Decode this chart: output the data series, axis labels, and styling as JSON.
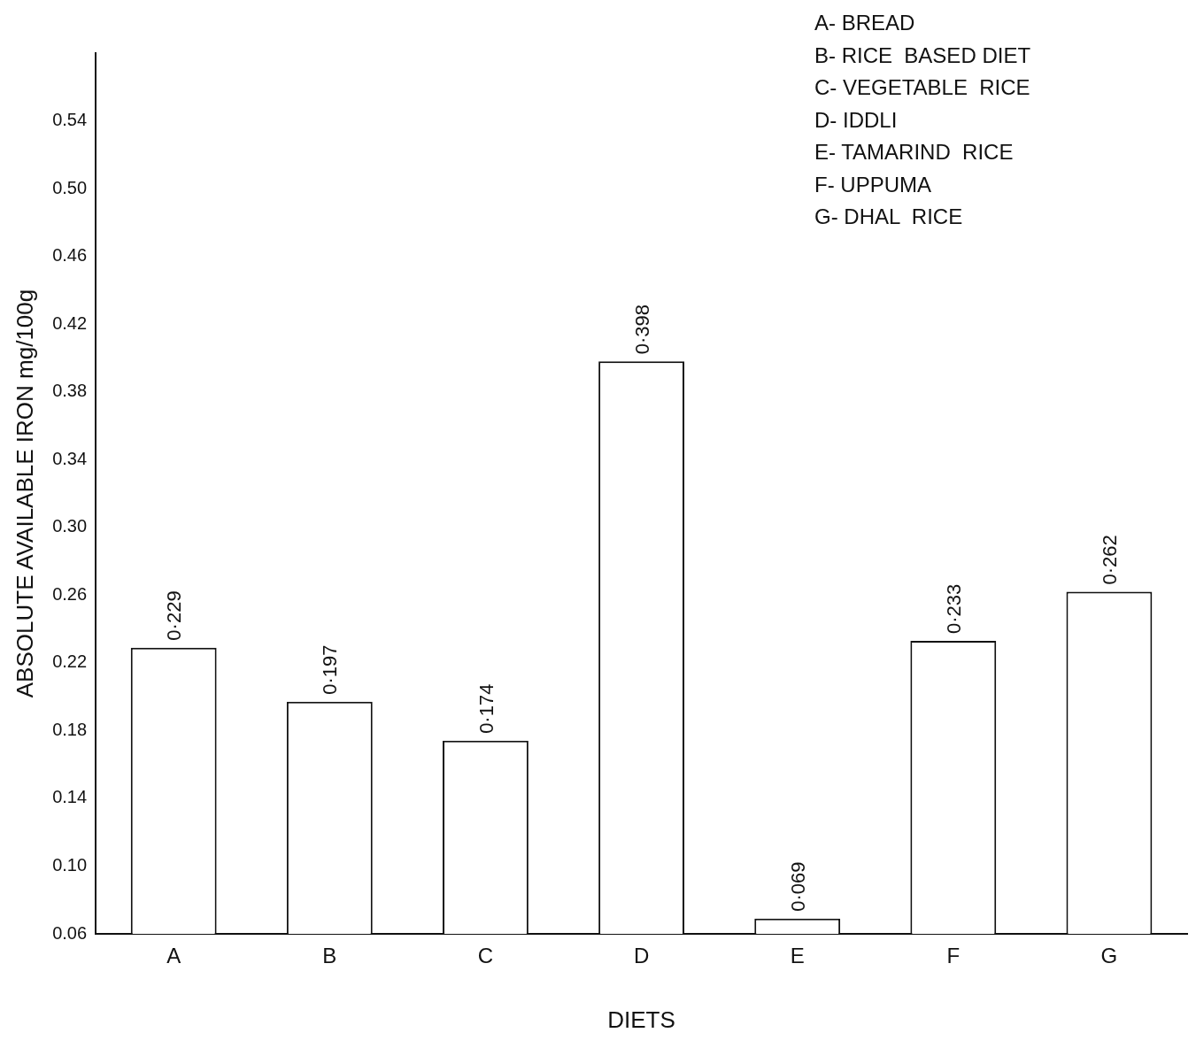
{
  "chart_data": {
    "type": "bar",
    "xlabel": "DIETS",
    "ylabel": "ABSOLUTE AVAILABLE IRON mg/100g",
    "categories": [
      "A",
      "B",
      "C",
      "D",
      "E",
      "F",
      "G"
    ],
    "values": [
      0.229,
      0.197,
      0.174,
      0.398,
      0.069,
      0.233,
      0.262
    ],
    "value_labels": [
      "0·229",
      "0·197",
      "0·174",
      "0·398",
      "0·069",
      "0·233",
      "0·262"
    ],
    "color": "#ffffff",
    "ylim": [
      0.06,
      0.58
    ],
    "yticks": [
      0.06,
      {
        "value": 0.1,
        "label": "0.10"
      },
      0.14,
      0.18,
      0.22,
      0.26,
      {
        "value": 0.3,
        "label": "0.30"
      },
      0.34,
      0.38,
      0.42,
      0.46,
      {
        "value": 0.5,
        "label": "0.50"
      },
      0.54
    ],
    "grid": false,
    "annotations": [
      "A- BREAD",
      "B- RICE  BASED DIET",
      "C- VEGETABLE  RICE",
      "D- IDDLI",
      "E- TAMARIND  RICE",
      "F- UPPUMA",
      "G- DHAL  RICE"
    ]
  }
}
